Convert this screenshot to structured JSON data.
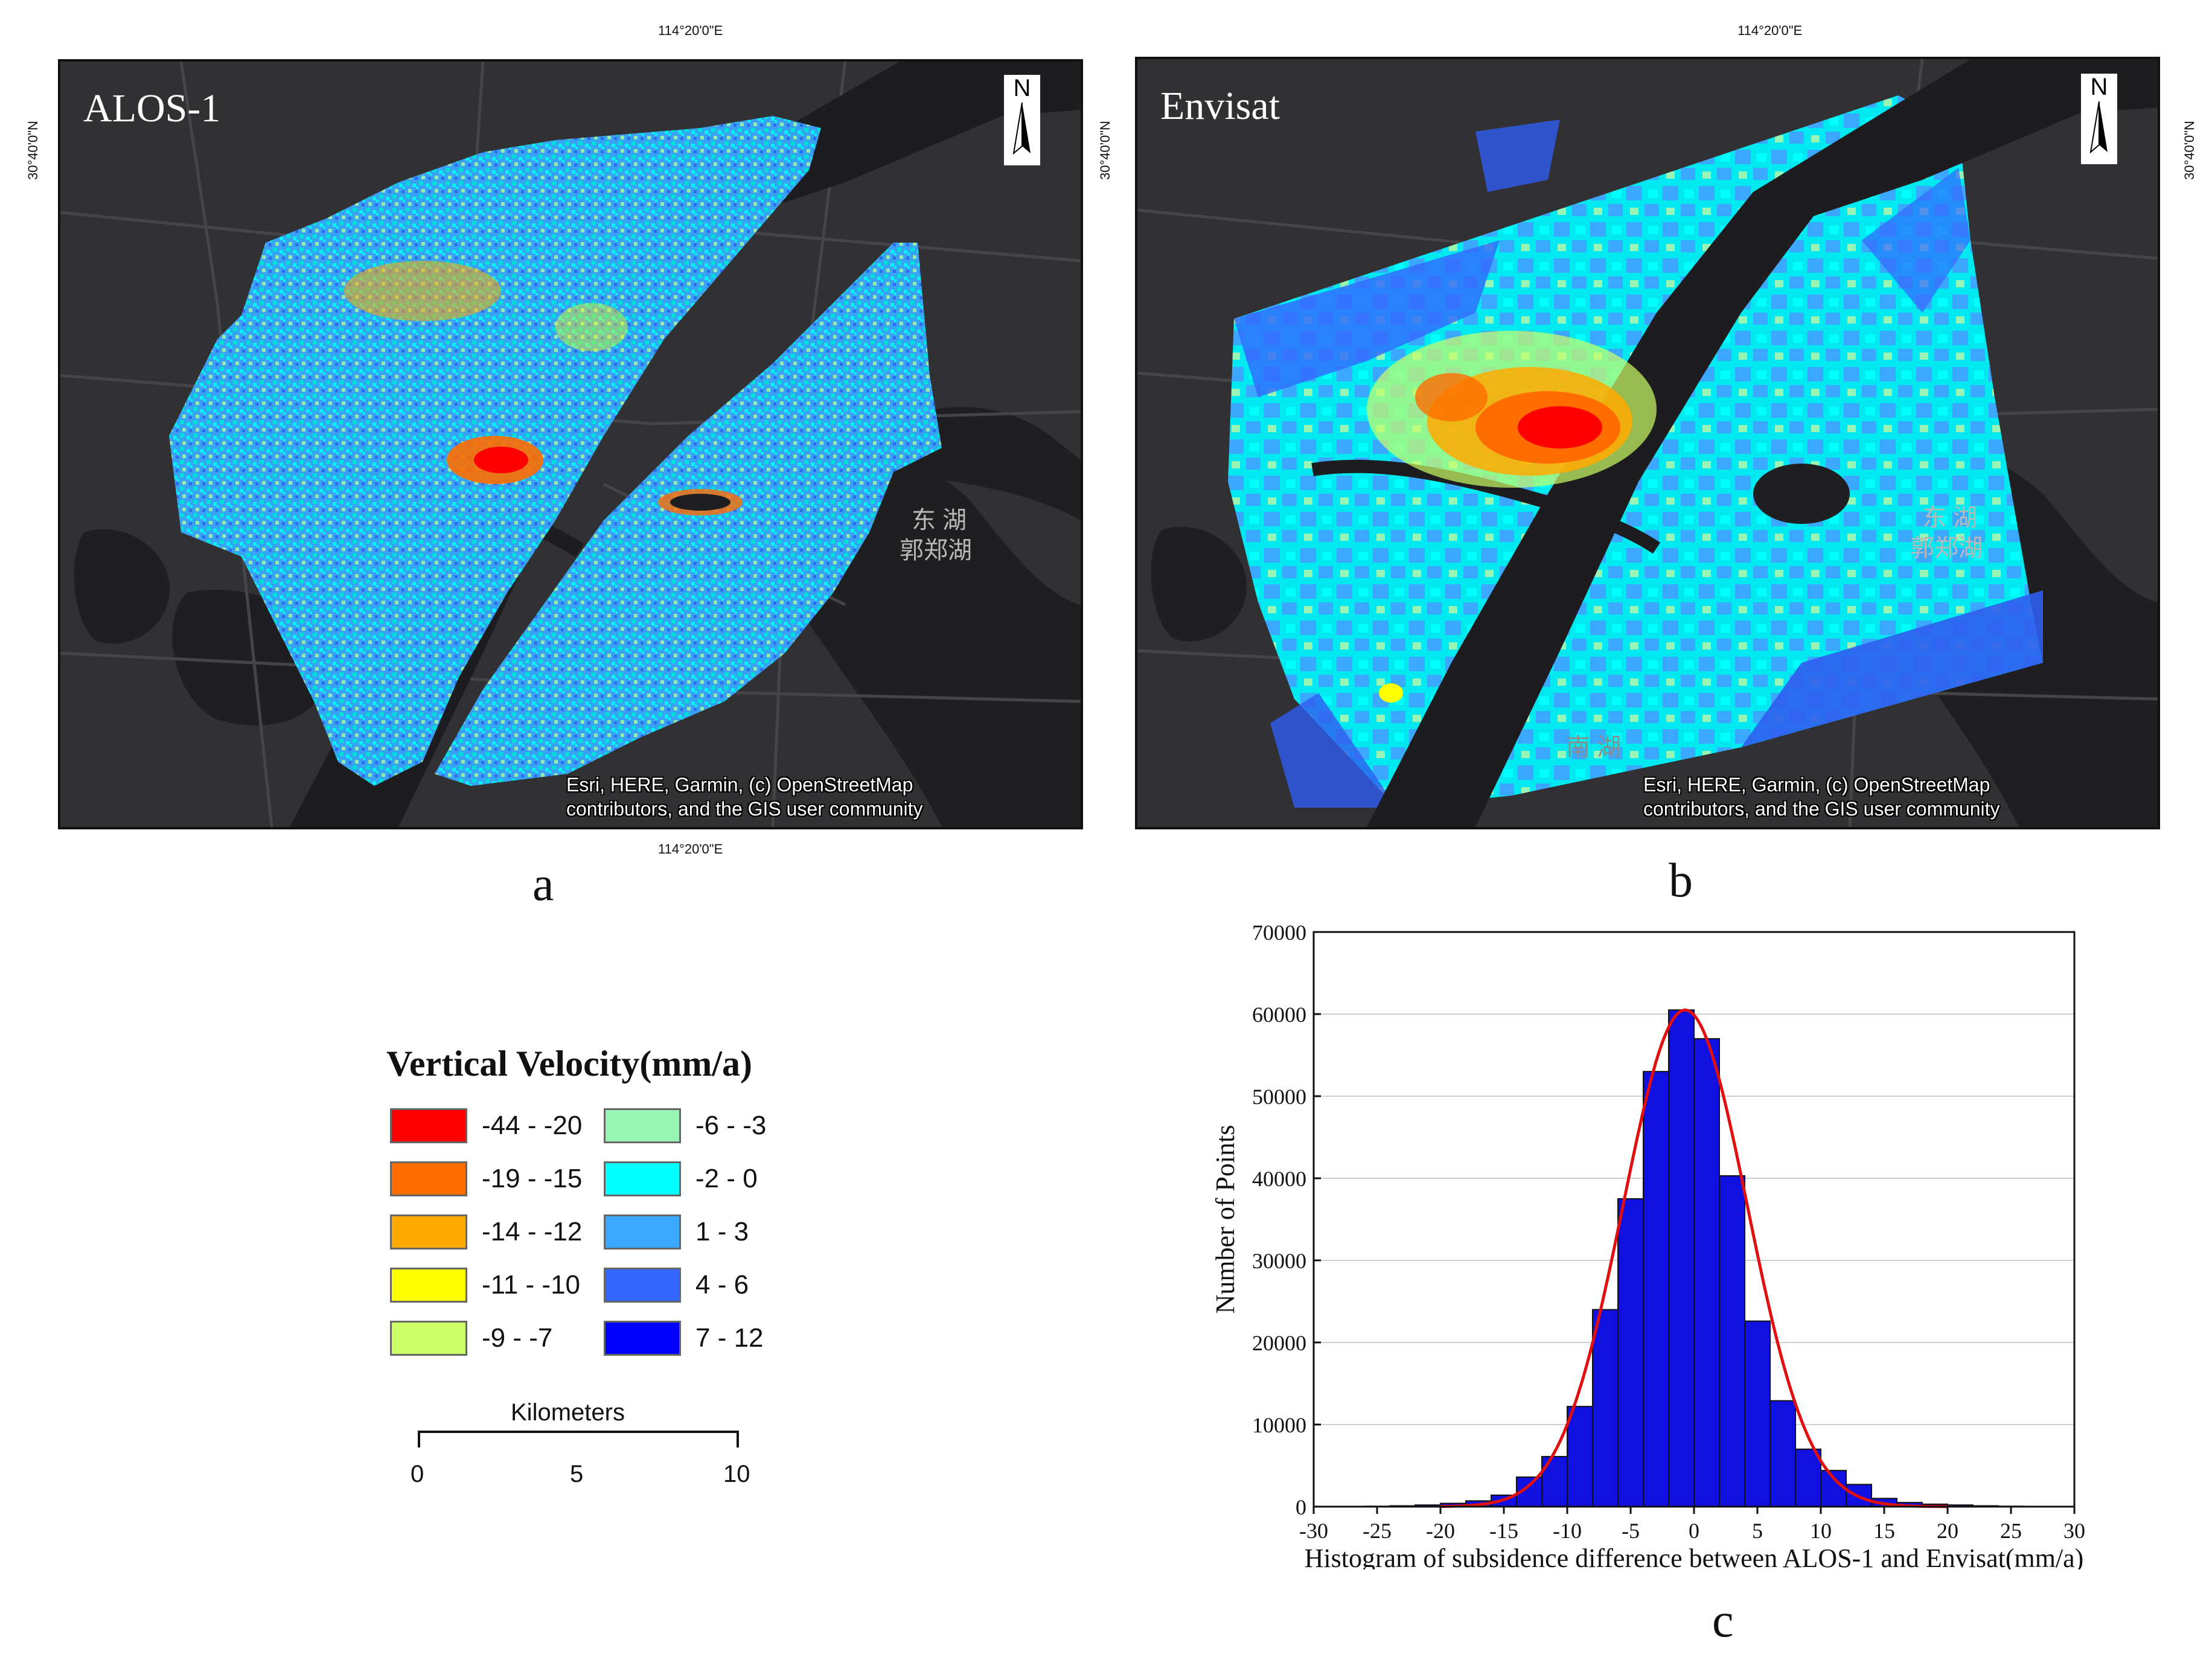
{
  "map_a": {
    "label": "ALOS-1",
    "lon_top": "114°20'0\"E",
    "lon_bottom": "114°20'0\"E",
    "lat_left": "30°40'0\"N",
    "north_symbol": "N",
    "attribution_line1": "Esri, HERE, Garmin, (c) OpenStreetMap",
    "attribution_line2": "contributors, and the GIS user community",
    "lake_label_1": "东 湖",
    "lake_label_2": "郭郑湖",
    "panel_letter": "a"
  },
  "map_b": {
    "label": "Envisat",
    "lon_top": "114°20'0\"E",
    "lat_left": "30°40'0\"N",
    "lat_right": "30°40'0\"N",
    "north_symbol": "N",
    "attribution_line1": "Esri, HERE, Garmin, (c) OpenStreetMap",
    "attribution_line2": "contributors, and the GIS user community",
    "lake_label_1": "东 湖",
    "lake_label_2": "郭郑湖",
    "lake_label_3": "南 湖",
    "panel_letter": "b"
  },
  "legend": {
    "title": "Vertical Velocity(mm/a)",
    "items": [
      {
        "label": "-44 - -20",
        "color": "#ff0000"
      },
      {
        "label": "-19 - -15",
        "color": "#ff6d00"
      },
      {
        "label": "-14 - -12",
        "color": "#ffaa00"
      },
      {
        "label": "-11 - -10",
        "color": "#ffff00"
      },
      {
        "label": "-9 - -7",
        "color": "#ccff66"
      },
      {
        "label": "-6 - -3",
        "color": "#98f5b5"
      },
      {
        "label": "-2 - 0",
        "color": "#00ffff"
      },
      {
        "label": "1 - 3",
        "color": "#3aa8ff"
      },
      {
        "label": "4 - 6",
        "color": "#3366ff"
      },
      {
        "label": "7 - 12",
        "color": "#0000ff"
      }
    ],
    "scale_title": "Kilometers",
    "scale_ticks": [
      "0",
      "5",
      "10"
    ]
  },
  "chart_data": {
    "type": "bar",
    "title": "",
    "xlabel": "Histogram of subsidence difference between ALOS-1 and Envisat(mm/a)",
    "ylabel": "Number of Points",
    "xlim": [
      -30,
      30
    ],
    "ylim": [
      0,
      70000
    ],
    "x_ticks": [
      -30,
      -25,
      -20,
      -15,
      -10,
      -5,
      0,
      5,
      10,
      15,
      20,
      25,
      30
    ],
    "y_ticks": [
      0,
      10000,
      20000,
      30000,
      40000,
      50000,
      60000,
      70000
    ],
    "bin_width": 2,
    "bin_left_edges": [
      -26,
      -24,
      -22,
      -20,
      -18,
      -16,
      -14,
      -12,
      -10,
      -8,
      -6,
      -4,
      -2,
      0,
      2,
      4,
      6,
      8,
      10,
      12,
      14,
      16,
      18,
      20,
      22,
      24
    ],
    "values": [
      50,
      100,
      200,
      400,
      700,
      1400,
      3600,
      6100,
      12200,
      24000,
      37500,
      53000,
      60500,
      57000,
      40300,
      22600,
      12900,
      7000,
      4400,
      2700,
      1000,
      500,
      300,
      200,
      100,
      50
    ],
    "fit_curve": {
      "type": "normal",
      "mean": -0.7,
      "sigma": 4.9,
      "peak": 60500,
      "color": "#e01010"
    },
    "bar_color": "#1010e0",
    "panel_letter": "c"
  }
}
